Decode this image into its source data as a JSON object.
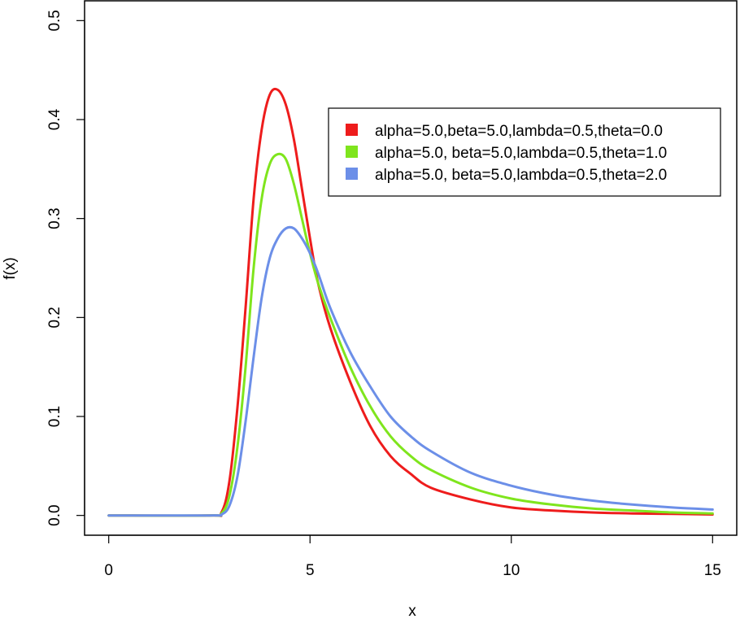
{
  "chart_data": {
    "type": "line",
    "title": "",
    "xlabel": "x",
    "ylabel": "f(x)",
    "xlim": [
      -0.6,
      15.6
    ],
    "ylim": [
      -0.02,
      0.52
    ],
    "x_ticks": [
      0,
      5,
      10,
      15
    ],
    "x_tick_labels": [
      "0",
      "5",
      "10",
      "15"
    ],
    "y_ticks": [
      0.0,
      0.1,
      0.2,
      0.3,
      0.4,
      0.5
    ],
    "y_tick_labels": [
      "0.0",
      "0.1",
      "0.2",
      "0.3",
      "0.4",
      "0.5"
    ],
    "grid": false,
    "legend_position": "top-right",
    "x": [
      0,
      2.5,
      2.8,
      3.0,
      3.2,
      3.4,
      3.6,
      3.8,
      4.0,
      4.2,
      4.4,
      4.6,
      4.8,
      5.0,
      5.2,
      5.5,
      6.0,
      6.5,
      7.0,
      7.5,
      8.0,
      9.0,
      10.0,
      11.0,
      12.0,
      13.0,
      14.0,
      15.0
    ],
    "series": [
      {
        "name": "alpha=5.0,beta=5.0,lambda=0.5,theta=0.0",
        "color": "#ee1c1c",
        "values": [
          0,
          0,
          0.003,
          0.035,
          0.11,
          0.21,
          0.32,
          0.39,
          0.425,
          0.43,
          0.415,
          0.38,
          0.33,
          0.28,
          0.235,
          0.19,
          0.135,
          0.09,
          0.06,
          0.042,
          0.028,
          0.016,
          0.008,
          0.005,
          0.003,
          0.002,
          0.0015,
          0.001
        ]
      },
      {
        "name": "alpha=5.0, beta=5.0,lambda=0.5,theta=1.0",
        "color": "#7fe51d",
        "values": [
          0,
          0,
          0.002,
          0.02,
          0.07,
          0.15,
          0.25,
          0.32,
          0.355,
          0.365,
          0.36,
          0.335,
          0.3,
          0.265,
          0.235,
          0.2,
          0.15,
          0.11,
          0.08,
          0.06,
          0.046,
          0.028,
          0.017,
          0.011,
          0.007,
          0.005,
          0.003,
          0.002
        ]
      },
      {
        "name": "alpha=5.0, beta=5.0,lambda=0.5,theta=2.0",
        "color": "#6c8fe8",
        "values": [
          0,
          0,
          0.001,
          0.01,
          0.04,
          0.095,
          0.16,
          0.22,
          0.26,
          0.28,
          0.29,
          0.29,
          0.28,
          0.265,
          0.245,
          0.21,
          0.165,
          0.13,
          0.1,
          0.08,
          0.065,
          0.043,
          0.03,
          0.021,
          0.015,
          0.011,
          0.008,
          0.006
        ]
      }
    ]
  }
}
